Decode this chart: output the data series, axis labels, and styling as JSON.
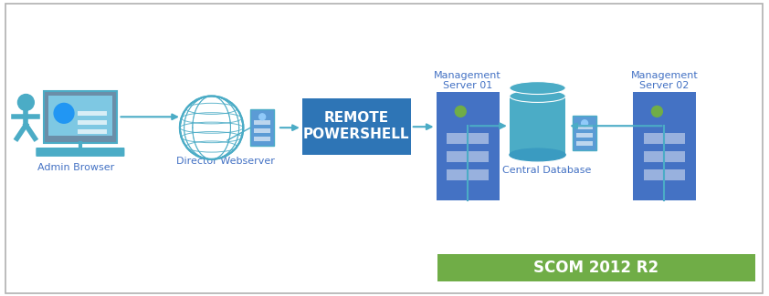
{
  "bg_color": "#ffffff",
  "border_color": "#b0b0b0",
  "blue_mid": "#4BACC6",
  "blue_server": "#4472C4",
  "blue_box": "#2E75B6",
  "green_banner": "#70AD47",
  "arrow_color": "#4BACC6",
  "text_color_blue": "#4472C4",
  "scom_text": "SCOM 2012 R2",
  "remote_line1": "REMOTE",
  "remote_line2": "POWERSHELL",
  "admin_label": "Admin Browser",
  "director_label": "Director Webserver",
  "mgmt01_label1": "Management",
  "mgmt01_label2": "Server 01",
  "mgmt02_label1": "Management",
  "mgmt02_label2": "Server 02",
  "db_label": "Central Database"
}
